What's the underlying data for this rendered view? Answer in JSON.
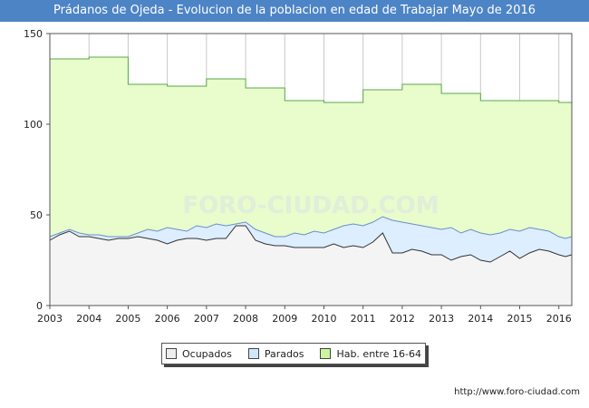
{
  "header": {
    "title": "Prádanos de Ojeda - Evolucion de la poblacion en edad de Trabajar Mayo de 2016"
  },
  "footer": {
    "source": "http://www.foro-ciudad.com"
  },
  "watermark": "FORO-CIUDAD.COM",
  "colors": {
    "title_bg": "#4d84c6",
    "hab_fill": "#e8fccc",
    "hab_line": "#5aa94a",
    "parados_fill": "#dceeff",
    "parados_line": "#6a8fc8",
    "ocupados_fill": "#f4f4f4",
    "ocupados_line": "#333333",
    "legend_hab": "#ccf5a0",
    "legend_parados": "#cfe6ff",
    "legend_ocupados": "#eeeeee"
  },
  "chart_data": {
    "type": "area",
    "xlim": [
      2003.0,
      2016.33
    ],
    "ylim": [
      0,
      150
    ],
    "x_ticks": [
      "2003",
      "2004",
      "2005",
      "2006",
      "2007",
      "2008",
      "2009",
      "2010",
      "2011",
      "2012",
      "2013",
      "2014",
      "2015",
      "2016"
    ],
    "y_ticks": [
      "0",
      "50",
      "100",
      "150"
    ],
    "grid": true,
    "legend_position": "bottom",
    "legend": [
      "Ocupados",
      "Parados",
      "Hab. entre 16-64"
    ],
    "series": [
      {
        "name": "Hab. entre 16-64",
        "step": true,
        "points": [
          [
            2003.0,
            136
          ],
          [
            2004.0,
            136
          ],
          [
            2004.0,
            137
          ],
          [
            2005.0,
            137
          ],
          [
            2005.0,
            122
          ],
          [
            2006.0,
            122
          ],
          [
            2006.0,
            121
          ],
          [
            2007.0,
            121
          ],
          [
            2007.0,
            125
          ],
          [
            2008.0,
            125
          ],
          [
            2008.0,
            120
          ],
          [
            2009.0,
            120
          ],
          [
            2009.0,
            113
          ],
          [
            2010.0,
            113
          ],
          [
            2010.0,
            112
          ],
          [
            2011.0,
            112
          ],
          [
            2011.0,
            119
          ],
          [
            2012.0,
            119
          ],
          [
            2012.0,
            122
          ],
          [
            2013.0,
            122
          ],
          [
            2013.0,
            117
          ],
          [
            2014.0,
            117
          ],
          [
            2014.0,
            113
          ],
          [
            2015.0,
            113
          ],
          [
            2015.0,
            113
          ],
          [
            2016.0,
            113
          ],
          [
            2016.0,
            112
          ],
          [
            2016.33,
            112
          ]
        ]
      },
      {
        "name": "Parados",
        "points": [
          [
            2003.0,
            38
          ],
          [
            2003.25,
            40
          ],
          [
            2003.5,
            42
          ],
          [
            2003.75,
            40
          ],
          [
            2004.0,
            39
          ],
          [
            2004.25,
            39
          ],
          [
            2004.5,
            38
          ],
          [
            2004.75,
            38
          ],
          [
            2005.0,
            38
          ],
          [
            2005.25,
            40
          ],
          [
            2005.5,
            42
          ],
          [
            2005.75,
            41
          ],
          [
            2006.0,
            43
          ],
          [
            2006.25,
            42
          ],
          [
            2006.5,
            41
          ],
          [
            2006.75,
            44
          ],
          [
            2007.0,
            43
          ],
          [
            2007.25,
            45
          ],
          [
            2007.5,
            44
          ],
          [
            2007.75,
            45
          ],
          [
            2008.0,
            46
          ],
          [
            2008.25,
            42
          ],
          [
            2008.5,
            40
          ],
          [
            2008.75,
            38
          ],
          [
            2009.0,
            38
          ],
          [
            2009.25,
            40
          ],
          [
            2009.5,
            39
          ],
          [
            2009.75,
            41
          ],
          [
            2010.0,
            40
          ],
          [
            2010.25,
            42
          ],
          [
            2010.5,
            44
          ],
          [
            2010.75,
            45
          ],
          [
            2011.0,
            44
          ],
          [
            2011.25,
            46
          ],
          [
            2011.5,
            49
          ],
          [
            2011.75,
            47
          ],
          [
            2012.0,
            46
          ],
          [
            2012.25,
            45
          ],
          [
            2012.5,
            44
          ],
          [
            2012.75,
            43
          ],
          [
            2013.0,
            42
          ],
          [
            2013.25,
            43
          ],
          [
            2013.5,
            40
          ],
          [
            2013.75,
            42
          ],
          [
            2014.0,
            40
          ],
          [
            2014.25,
            39
          ],
          [
            2014.5,
            40
          ],
          [
            2014.75,
            42
          ],
          [
            2015.0,
            41
          ],
          [
            2015.25,
            43
          ],
          [
            2015.5,
            42
          ],
          [
            2015.75,
            41
          ],
          [
            2016.0,
            38
          ],
          [
            2016.17,
            37
          ],
          [
            2016.33,
            38
          ]
        ]
      },
      {
        "name": "Ocupados",
        "points": [
          [
            2003.0,
            36
          ],
          [
            2003.25,
            39
          ],
          [
            2003.5,
            41
          ],
          [
            2003.75,
            38
          ],
          [
            2004.0,
            38
          ],
          [
            2004.25,
            37
          ],
          [
            2004.5,
            36
          ],
          [
            2004.75,
            37
          ],
          [
            2005.0,
            37
          ],
          [
            2005.25,
            38
          ],
          [
            2005.5,
            37
          ],
          [
            2005.75,
            36
          ],
          [
            2006.0,
            34
          ],
          [
            2006.25,
            36
          ],
          [
            2006.5,
            37
          ],
          [
            2006.75,
            37
          ],
          [
            2007.0,
            36
          ],
          [
            2007.25,
            37
          ],
          [
            2007.5,
            37
          ],
          [
            2007.75,
            44
          ],
          [
            2008.0,
            44
          ],
          [
            2008.25,
            36
          ],
          [
            2008.5,
            34
          ],
          [
            2008.75,
            33
          ],
          [
            2009.0,
            33
          ],
          [
            2009.25,
            32
          ],
          [
            2009.5,
            32
          ],
          [
            2009.75,
            32
          ],
          [
            2010.0,
            32
          ],
          [
            2010.25,
            34
          ],
          [
            2010.5,
            32
          ],
          [
            2010.75,
            33
          ],
          [
            2011.0,
            32
          ],
          [
            2011.25,
            35
          ],
          [
            2011.5,
            40
          ],
          [
            2011.75,
            29
          ],
          [
            2012.0,
            29
          ],
          [
            2012.25,
            31
          ],
          [
            2012.5,
            30
          ],
          [
            2012.75,
            28
          ],
          [
            2013.0,
            28
          ],
          [
            2013.25,
            25
          ],
          [
            2013.5,
            27
          ],
          [
            2013.75,
            28
          ],
          [
            2014.0,
            25
          ],
          [
            2014.25,
            24
          ],
          [
            2014.5,
            27
          ],
          [
            2014.75,
            30
          ],
          [
            2015.0,
            26
          ],
          [
            2015.25,
            29
          ],
          [
            2015.5,
            31
          ],
          [
            2015.75,
            30
          ],
          [
            2016.0,
            28
          ],
          [
            2016.17,
            27
          ],
          [
            2016.33,
            28
          ]
        ]
      }
    ]
  }
}
